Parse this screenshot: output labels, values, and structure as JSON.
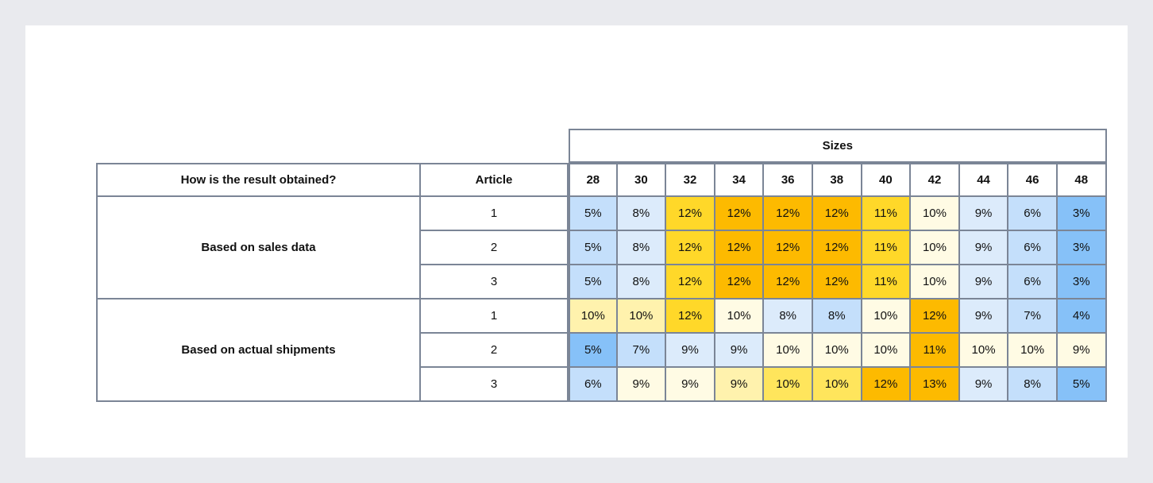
{
  "chart_data": {
    "type": "heatmap",
    "column_group_label": "Sizes",
    "row_header_label": "How is the result obtained?",
    "article_header_label": "Article",
    "sizes": [
      "28",
      "30",
      "32",
      "34",
      "36",
      "38",
      "40",
      "42",
      "44",
      "46",
      "48"
    ],
    "groups": [
      {
        "name": "Based on sales data",
        "rows": [
          {
            "article": "1",
            "values": [
              "5%",
              "8%",
              "12%",
              "12%",
              "12%",
              "12%",
              "11%",
              "10%",
              "9%",
              "6%",
              "3%"
            ]
          },
          {
            "article": "2",
            "values": [
              "5%",
              "8%",
              "12%",
              "12%",
              "12%",
              "12%",
              "11%",
              "10%",
              "9%",
              "6%",
              "3%"
            ]
          },
          {
            "article": "3",
            "values": [
              "5%",
              "8%",
              "12%",
              "12%",
              "12%",
              "12%",
              "11%",
              "10%",
              "9%",
              "6%",
              "3%"
            ]
          }
        ]
      },
      {
        "name": "Based on actual shipments",
        "rows": [
          {
            "article": "1",
            "values": [
              "10%",
              "10%",
              "12%",
              "10%",
              "8%",
              "8%",
              "10%",
              "12%",
              "9%",
              "7%",
              "4%"
            ]
          },
          {
            "article": "2",
            "values": [
              "5%",
              "7%",
              "9%",
              "9%",
              "10%",
              "10%",
              "10%",
              "11%",
              "10%",
              "10%",
              "9%"
            ]
          },
          {
            "article": "3",
            "values": [
              "6%",
              "9%",
              "9%",
              "9%",
              "10%",
              "10%",
              "12%",
              "13%",
              "9%",
              "8%",
              "5%"
            ]
          }
        ]
      }
    ],
    "colors": [
      [
        "#c4dffb",
        "#dcebfb",
        "#ffd829",
        "#fdba00",
        "#fdba00",
        "#fdba00",
        "#ffd829",
        "#fffbe4",
        "#dcebfb",
        "#c4dffb",
        "#86c1f8"
      ],
      [
        "#c4dffb",
        "#dcebfb",
        "#ffd829",
        "#fdba00",
        "#fdba00",
        "#fdba00",
        "#ffd829",
        "#fffbe4",
        "#dcebfb",
        "#c4dffb",
        "#86c1f8"
      ],
      [
        "#c4dffb",
        "#dcebfb",
        "#ffd829",
        "#fdba00",
        "#fdba00",
        "#fdba00",
        "#ffd829",
        "#fffbe4",
        "#dcebfb",
        "#c4dffb",
        "#86c1f8"
      ],
      [
        "#fff2ad",
        "#fff2ad",
        "#ffd829",
        "#fffbe4",
        "#dcebfb",
        "#c4dffb",
        "#fffbe4",
        "#fdba00",
        "#dcebfb",
        "#c4dffb",
        "#86c1f8"
      ],
      [
        "#86c1f8",
        "#c4dffb",
        "#dcebfb",
        "#dcebfb",
        "#fffbe4",
        "#fffbe4",
        "#fffbe4",
        "#fdba00",
        "#fffbe4",
        "#fffbe4",
        "#fffbe4"
      ],
      [
        "#c4dffb",
        "#fffbe4",
        "#fffbe4",
        "#fff2ad",
        "#ffe55c",
        "#ffe55c",
        "#fdba00",
        "#fdba00",
        "#dcebfb",
        "#c4dffb",
        "#86c1f8"
      ]
    ]
  }
}
